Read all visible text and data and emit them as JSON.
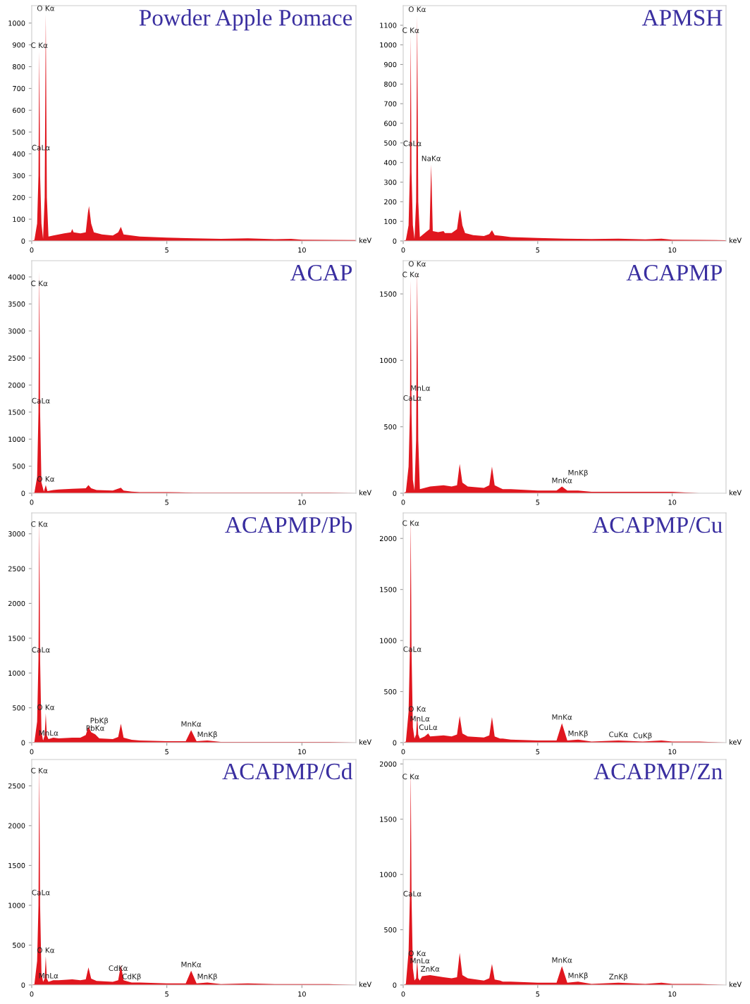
{
  "chart_data": [
    {
      "type": "area",
      "title": "Powder Apple Pomace",
      "xlabel": "keV",
      "xlim": [
        0,
        12
      ],
      "xticks": [
        0,
        5,
        10
      ],
      "ylim": [
        0,
        1080
      ],
      "yticks": [
        0,
        100,
        200,
        300,
        400,
        500,
        600,
        700,
        800,
        900,
        1000
      ],
      "grid": false,
      "legend": false,
      "series": [
        {
          "color": "#e0161e",
          "x": [
            0,
            0.1,
            0.2,
            0.25,
            0.28,
            0.31,
            0.36,
            0.42,
            0.48,
            0.52,
            0.56,
            0.62,
            0.8,
            1.0,
            1.2,
            1.45,
            1.5,
            1.55,
            1.8,
            2.0,
            2.08,
            2.12,
            2.2,
            2.3,
            2.6,
            3.0,
            3.2,
            3.3,
            3.4,
            3.7,
            4.0,
            5.0,
            6.0,
            7.0,
            8.0,
            9.0,
            9.6,
            10.0,
            11.0,
            12.0
          ],
          "values": [
            0,
            5,
            80,
            300,
            870,
            300,
            80,
            10,
            200,
            1040,
            200,
            20,
            25,
            30,
            35,
            40,
            55,
            40,
            35,
            40,
            130,
            160,
            80,
            40,
            30,
            25,
            40,
            65,
            30,
            25,
            20,
            15,
            12,
            10,
            12,
            8,
            10,
            6,
            5,
            4
          ]
        }
      ],
      "annotations": [
        {
          "text": "O Kα",
          "x": 0.52,
          "y": 1040
        },
        {
          "text": "C Kα",
          "x": 0.28,
          "y": 870
        },
        {
          "text": "CaLα",
          "x": 0.34,
          "y": 400
        }
      ]
    },
    {
      "type": "area",
      "title": "APMSH",
      "xlabel": "keV",
      "xlim": [
        0,
        12
      ],
      "xticks": [
        0,
        5,
        10
      ],
      "ylim": [
        0,
        1200
      ],
      "yticks": [
        0,
        100,
        200,
        300,
        400,
        500,
        600,
        700,
        800,
        900,
        1000,
        1100
      ],
      "grid": false,
      "legend": false,
      "series": [
        {
          "color": "#e0161e",
          "x": [
            0,
            0.1,
            0.2,
            0.25,
            0.28,
            0.31,
            0.36,
            0.42,
            0.48,
            0.52,
            0.56,
            0.62,
            0.8,
            0.98,
            1.04,
            1.1,
            1.3,
            1.5,
            1.55,
            1.8,
            2.0,
            2.08,
            2.12,
            2.2,
            2.3,
            2.6,
            3.0,
            3.2,
            3.3,
            3.4,
            3.7,
            4.0,
            5.0,
            6.0,
            7.0,
            8.0,
            9.0,
            9.6,
            10.0,
            11.0,
            12.0
          ],
          "values": [
            0,
            5,
            80,
            350,
            1050,
            350,
            80,
            10,
            200,
            1150,
            200,
            20,
            40,
            60,
            390,
            50,
            45,
            50,
            40,
            40,
            60,
            140,
            160,
            80,
            40,
            30,
            25,
            35,
            55,
            30,
            25,
            20,
            15,
            12,
            10,
            12,
            8,
            12,
            6,
            5,
            4
          ]
        }
      ],
      "annotations": [
        {
          "text": "O Kα",
          "x": 0.52,
          "y": 1150
        },
        {
          "text": "C Kα",
          "x": 0.28,
          "y": 1043
        },
        {
          "text": "CaLα",
          "x": 0.34,
          "y": 466
        },
        {
          "text": "NaKα",
          "x": 1.04,
          "y": 390
        }
      ]
    },
    {
      "type": "area",
      "title": "ACAP",
      "xlabel": "keV",
      "xlim": [
        0,
        12
      ],
      "xticks": [
        0,
        5,
        10
      ],
      "ylim": [
        0,
        4300
      ],
      "yticks": [
        0,
        500,
        1000,
        1500,
        2000,
        2500,
        3000,
        3500,
        4000
      ],
      "grid": false,
      "legend": false,
      "series": [
        {
          "color": "#e0161e",
          "x": [
            0,
            0.1,
            0.2,
            0.25,
            0.28,
            0.31,
            0.36,
            0.45,
            0.52,
            0.58,
            0.8,
            1.0,
            1.5,
            2.0,
            2.1,
            2.2,
            2.4,
            3.0,
            3.3,
            3.4,
            3.7,
            4.0,
            5.0,
            6.0,
            7.0,
            8.0,
            9.0,
            10.0,
            11.0,
            12.0
          ],
          "values": [
            0,
            10,
            300,
            1500,
            4100,
            1500,
            200,
            30,
            150,
            40,
            60,
            70,
            80,
            90,
            150,
            90,
            60,
            50,
            100,
            50,
            30,
            20,
            20,
            10,
            10,
            10,
            10,
            10,
            10,
            0
          ]
        }
      ],
      "annotations": [
        {
          "text": "C Kα",
          "x": 0.28,
          "y": 3766
        },
        {
          "text": "CaLα",
          "x": 0.34,
          "y": 1597
        },
        {
          "text": "O Kα",
          "x": 0.52,
          "y": 150
        }
      ]
    },
    {
      "type": "area",
      "title": "ACAPMP",
      "xlabel": "keV",
      "xlim": [
        0,
        12
      ],
      "xticks": [
        0,
        5,
        10
      ],
      "ylim": [
        0,
        1750
      ],
      "yticks": [
        0,
        500,
        1000,
        1500
      ],
      "grid": false,
      "legend": false,
      "series": [
        {
          "color": "#e0161e",
          "x": [
            0,
            0.1,
            0.2,
            0.25,
            0.28,
            0.31,
            0.36,
            0.42,
            0.48,
            0.52,
            0.56,
            0.62,
            0.8,
            1.0,
            1.5,
            1.8,
            2.0,
            2.1,
            2.2,
            2.4,
            3.0,
            3.2,
            3.3,
            3.4,
            3.6,
            3.7,
            4.0,
            5.0,
            5.7,
            5.9,
            6.1,
            6.5,
            7.0,
            8.0,
            9.0,
            9.6,
            10.0,
            11.0,
            12.0
          ],
          "values": [
            0,
            10,
            200,
            600,
            1600,
            600,
            100,
            20,
            400,
            1680,
            400,
            30,
            40,
            50,
            60,
            50,
            60,
            220,
            80,
            50,
            40,
            60,
            200,
            60,
            40,
            30,
            30,
            20,
            20,
            50,
            20,
            20,
            10,
            10,
            10,
            10,
            10,
            0,
            0
          ]
        }
      ],
      "annotations": [
        {
          "text": "O Kα",
          "x": 0.52,
          "y": 1680
        },
        {
          "text": "C Kα",
          "x": 0.28,
          "y": 1600
        },
        {
          "text": "MnLα",
          "x": 0.64,
          "y": 745
        },
        {
          "text": "CaLα",
          "x": 0.34,
          "y": 670
        },
        {
          "text": "MnKβ",
          "x": 6.5,
          "y": 20
        },
        {
          "text": "MnKα",
          "x": 5.9,
          "y": 50
        }
      ]
    },
    {
      "type": "area",
      "title": "ACAPMP/Pb",
      "xlabel": "keV",
      "xlim": [
        0,
        12
      ],
      "xticks": [
        0,
        5,
        10
      ],
      "ylim": [
        0,
        3300
      ],
      "yticks": [
        0,
        500,
        1000,
        1500,
        2000,
        2500,
        3000
      ],
      "grid": false,
      "legend": false,
      "series": [
        {
          "color": "#e0161e",
          "x": [
            0,
            0.1,
            0.2,
            0.25,
            0.28,
            0.31,
            0.36,
            0.42,
            0.48,
            0.52,
            0.56,
            0.62,
            0.8,
            1.0,
            1.5,
            1.8,
            2.0,
            2.1,
            2.2,
            2.35,
            2.5,
            3.0,
            3.2,
            3.3,
            3.4,
            3.6,
            3.7,
            4.0,
            5.0,
            5.7,
            5.9,
            6.1,
            6.5,
            7.0,
            8.0,
            9.0,
            10.0,
            11.0,
            12.0
          ],
          "values": [
            0,
            10,
            300,
            1200,
            3200,
            1200,
            150,
            30,
            100,
            420,
            100,
            50,
            70,
            60,
            70,
            70,
            110,
            230,
            150,
            120,
            60,
            50,
            80,
            270,
            70,
            50,
            40,
            30,
            20,
            20,
            180,
            20,
            30,
            10,
            10,
            10,
            10,
            10,
            0
          ]
        }
      ],
      "annotations": [
        {
          "text": "C Kα",
          "x": 0.28,
          "y": 3051
        },
        {
          "text": "CaLα",
          "x": 0.34,
          "y": 1245
        },
        {
          "text": "MnLα",
          "x": 0.62,
          "y": 50
        },
        {
          "text": "O Kα",
          "x": 0.52,
          "y": 420
        },
        {
          "text": "PbKβ",
          "x": 2.5,
          "y": 60
        },
        {
          "text": "PbKα",
          "x": 2.35,
          "y": 120
        },
        {
          "text": "MnKα",
          "x": 5.9,
          "y": 180
        },
        {
          "text": "MnKβ",
          "x": 6.5,
          "y": 30
        }
      ]
    },
    {
      "type": "area",
      "title": "ACAPMP/Cu",
      "xlabel": "keV",
      "xlim": [
        0,
        12
      ],
      "xticks": [
        0,
        5,
        10
      ],
      "ylim": [
        0,
        2250
      ],
      "yticks": [
        0,
        500,
        1000,
        1500,
        2000
      ],
      "grid": false,
      "legend": false,
      "series": [
        {
          "color": "#e0161e",
          "x": [
            0,
            0.1,
            0.2,
            0.25,
            0.28,
            0.31,
            0.36,
            0.42,
            0.48,
            0.52,
            0.56,
            0.62,
            0.8,
            0.93,
            1.0,
            1.5,
            1.8,
            2.0,
            2.1,
            2.2,
            2.4,
            3.0,
            3.2,
            3.3,
            3.4,
            3.6,
            3.7,
            4.0,
            5.0,
            5.7,
            5.9,
            6.1,
            6.5,
            7.0,
            8.0,
            8.9,
            9.6,
            10.0,
            11.0,
            12.0
          ],
          "values": [
            0,
            10,
            300,
            900,
            2200,
            900,
            150,
            40,
            80,
            270,
            80,
            40,
            60,
            90,
            60,
            70,
            60,
            80,
            260,
            90,
            60,
            50,
            70,
            250,
            60,
            40,
            40,
            30,
            20,
            20,
            190,
            20,
            30,
            10,
            20,
            10,
            20,
            10,
            10,
            0
          ]
        }
      ],
      "annotations": [
        {
          "text": "C Kα",
          "x": 0.28,
          "y": 2090
        },
        {
          "text": "CaLα",
          "x": 0.34,
          "y": 855
        },
        {
          "text": "MnLα",
          "x": 0.62,
          "y": 40
        },
        {
          "text": "O Kα",
          "x": 0.52,
          "y": 270
        },
        {
          "text": "CuLα",
          "x": 0.93,
          "y": 90
        },
        {
          "text": "MnKα",
          "x": 5.9,
          "y": 190
        },
        {
          "text": "MnKβ",
          "x": 6.5,
          "y": 30
        },
        {
          "text": "CuKα",
          "x": 8.0,
          "y": 20
        },
        {
          "text": "CuKβ",
          "x": 8.9,
          "y": 10
        }
      ]
    },
    {
      "type": "area",
      "title": "ACAPMP/Cd",
      "xlabel": "keV",
      "xlim": [
        0,
        12
      ],
      "xticks": [
        0,
        5,
        10
      ],
      "ylim": [
        0,
        2830
      ],
      "yticks": [
        0,
        500,
        1000,
        1500,
        2000,
        2500
      ],
      "grid": false,
      "legend": false,
      "series": [
        {
          "color": "#e0161e",
          "x": [
            0,
            0.1,
            0.2,
            0.25,
            0.28,
            0.31,
            0.36,
            0.42,
            0.48,
            0.52,
            0.56,
            0.62,
            0.8,
            1.0,
            1.5,
            1.8,
            2.0,
            2.1,
            2.2,
            2.4,
            3.0,
            3.2,
            3.3,
            3.4,
            3.6,
            3.7,
            4.0,
            5.0,
            5.7,
            5.9,
            6.1,
            6.5,
            7.0,
            8.0,
            9.0,
            9.6,
            10.0,
            11.0,
            12.0
          ],
          "values": [
            0,
            10,
            300,
            1000,
            2750,
            1000,
            150,
            40,
            80,
            360,
            80,
            40,
            60,
            60,
            70,
            60,
            70,
            220,
            80,
            50,
            40,
            60,
            250,
            60,
            40,
            30,
            30,
            20,
            20,
            180,
            20,
            30,
            10,
            20,
            10,
            10,
            10,
            10,
            0
          ]
        }
      ],
      "annotations": [
        {
          "text": "C Kα",
          "x": 0.28,
          "y": 2614
        },
        {
          "text": "CaLα",
          "x": 0.34,
          "y": 1084
        },
        {
          "text": "MnLα",
          "x": 0.62,
          "y": 40
        },
        {
          "text": "O Kα",
          "x": 0.52,
          "y": 360
        },
        {
          "text": "CdKα",
          "x": 3.2,
          "y": 60
        },
        {
          "text": "CdKβ",
          "x": 3.7,
          "y": 30
        },
        {
          "text": "MnKα",
          "x": 5.9,
          "y": 180
        },
        {
          "text": "MnKβ",
          "x": 6.5,
          "y": 30
        }
      ]
    },
    {
      "type": "area",
      "title": "ACAPMP/Zn",
      "xlabel": "keV",
      "xlim": [
        0,
        12
      ],
      "xticks": [
        0,
        5,
        10
      ],
      "ylim": [
        0,
        2040
      ],
      "yticks": [
        0,
        500,
        1000,
        1500,
        2000
      ],
      "grid": false,
      "legend": false,
      "series": [
        {
          "color": "#e0161e",
          "x": [
            0,
            0.1,
            0.2,
            0.25,
            0.28,
            0.31,
            0.36,
            0.42,
            0.48,
            0.52,
            0.56,
            0.62,
            0.7,
            1.0,
            1.5,
            1.8,
            2.0,
            2.1,
            2.2,
            2.4,
            3.0,
            3.2,
            3.3,
            3.4,
            3.6,
            3.7,
            4.0,
            5.0,
            5.7,
            5.9,
            6.1,
            6.5,
            7.0,
            8.0,
            9.0,
            9.6,
            10.0,
            11.0,
            12.0
          ],
          "values": [
            0,
            10,
            300,
            800,
            1960,
            800,
            150,
            40,
            60,
            230,
            60,
            40,
            80,
            90,
            70,
            60,
            70,
            290,
            90,
            60,
            40,
            60,
            190,
            50,
            40,
            30,
            30,
            20,
            20,
            170,
            20,
            30,
            10,
            20,
            10,
            20,
            10,
            10,
            0
          ]
        }
      ],
      "annotations": [
        {
          "text": "C Kα",
          "x": 0.28,
          "y": 1830
        },
        {
          "text": "CaLα",
          "x": 0.34,
          "y": 770
        },
        {
          "text": "MnLα",
          "x": 0.62,
          "y": 40
        },
        {
          "text": "O Kα",
          "x": 0.52,
          "y": 230
        },
        {
          "text": "ZnKα",
          "x": 1.0,
          "y": 90
        },
        {
          "text": "MnKα",
          "x": 5.9,
          "y": 170
        },
        {
          "text": "MnKβ",
          "x": 6.5,
          "y": 30
        },
        {
          "text": "ZnKβ",
          "x": 8.0,
          "y": 20
        }
      ]
    }
  ]
}
